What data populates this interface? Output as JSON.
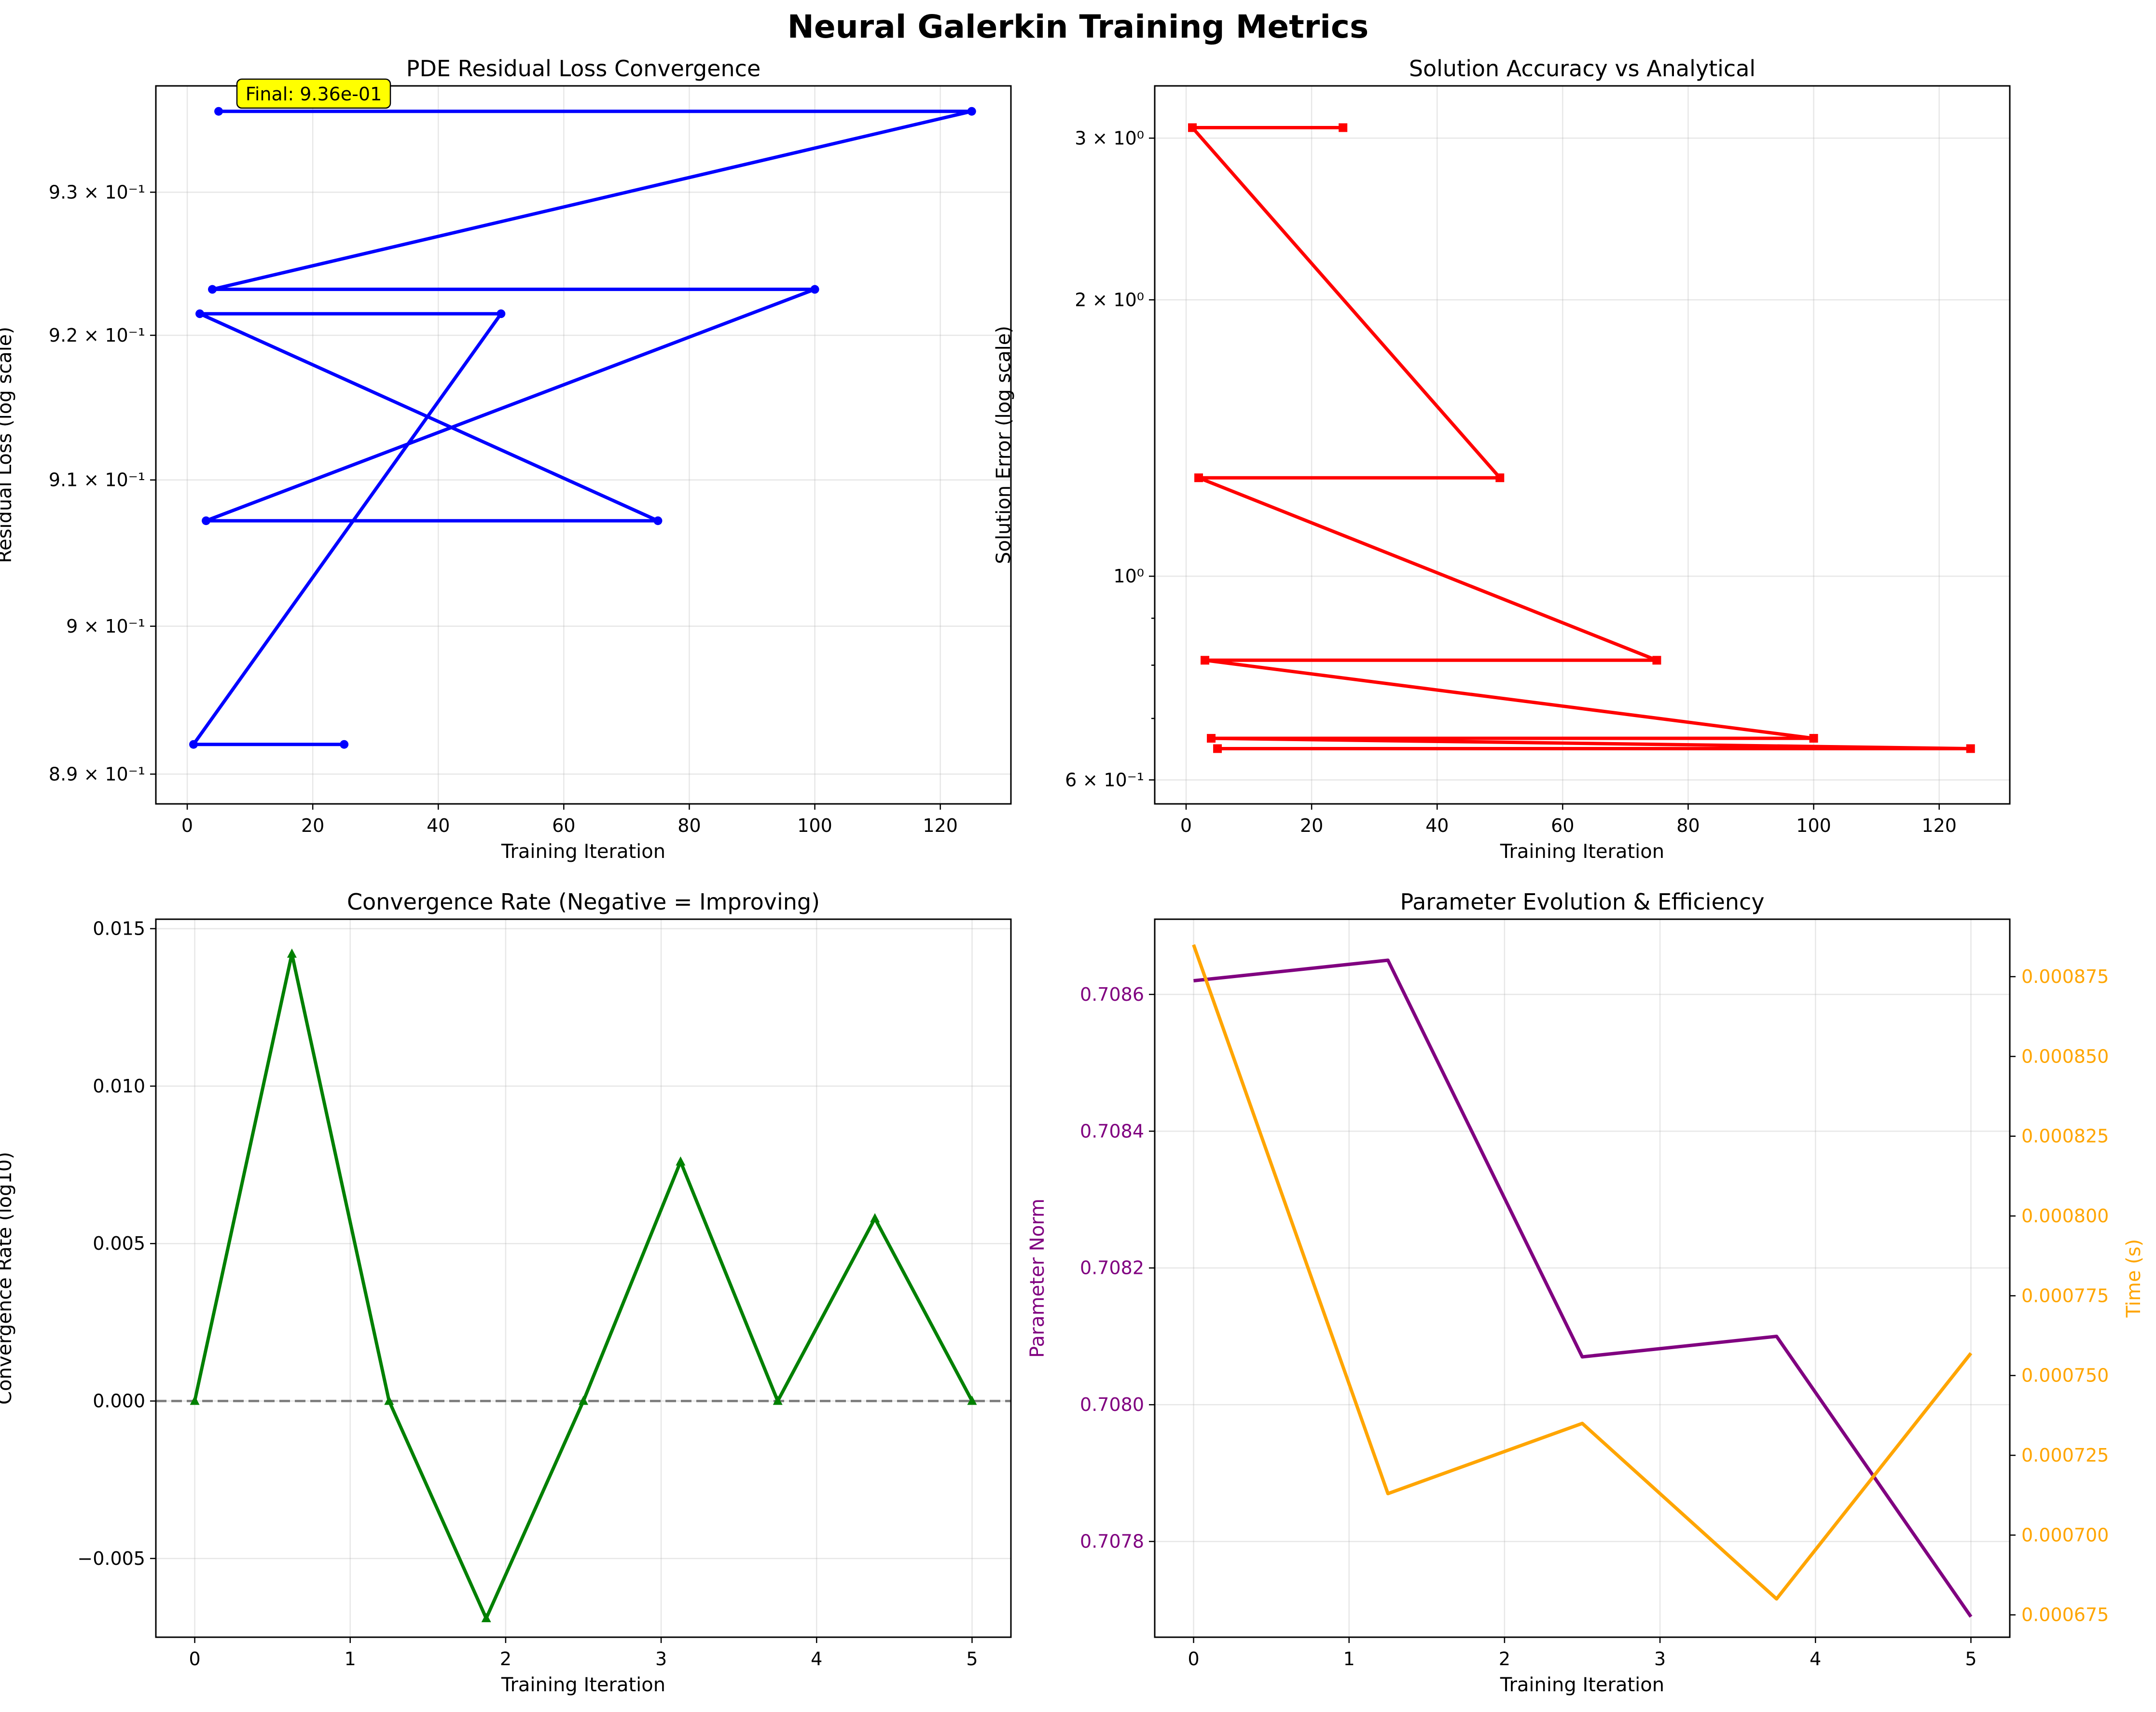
{
  "figure": {
    "title": "Neural Galerkin Training Metrics"
  },
  "chart_data": [
    {
      "id": "residual",
      "type": "line",
      "title": "PDE Residual Loss Convergence",
      "xlabel": "Training Iteration",
      "ylabel": "Residual Loss (log scale)",
      "xlim": [
        -5,
        131.25
      ],
      "ylim": [
        0.888,
        0.9375
      ],
      "yscale": "log",
      "grid": true,
      "x_ticks": [
        0,
        20,
        40,
        60,
        80,
        100,
        120
      ],
      "x_tick_labels": [
        "0",
        "20",
        "40",
        "60",
        "80",
        "100",
        "120"
      ],
      "y_ticks": [
        0.89,
        0.9,
        0.91,
        0.92,
        0.93
      ],
      "y_tick_labels": [
        "8.9 × 10⁻¹",
        "9 × 10⁻¹",
        "9.1 × 10⁻¹",
        "9.2 × 10⁻¹",
        "9.3 × 10⁻¹"
      ],
      "series": [
        {
          "color": "#0000ff",
          "marker": "circle",
          "x": [
            25,
            1,
            50,
            2,
            75,
            3,
            100,
            4,
            125,
            5
          ],
          "y": [
            0.892,
            0.892,
            0.9215,
            0.9215,
            0.9072,
            0.9072,
            0.9232,
            0.9232,
            0.9357,
            0.9357
          ]
        }
      ],
      "annotation": {
        "text": "Final: 9.36e-01",
        "background": "#ffff00"
      }
    },
    {
      "id": "accuracy",
      "type": "line",
      "title": "Solution Accuracy vs Analytical",
      "xlabel": "Training Iteration",
      "ylabel": "Solution Error (log scale)",
      "xlim": [
        -5,
        131.25
      ],
      "ylim": [
        0.565,
        3.42
      ],
      "yscale": "log",
      "grid": true,
      "x_ticks": [
        0,
        20,
        40,
        60,
        80,
        100,
        120
      ],
      "x_tick_labels": [
        "0",
        "20",
        "40",
        "60",
        "80",
        "100",
        "120"
      ],
      "y_ticks": [
        0.6,
        1,
        2,
        3
      ],
      "y_tick_labels": [
        "6 × 10⁻¹",
        "10⁰",
        "2 × 10⁰",
        "3 × 10⁰"
      ],
      "y_minor_ticks": [
        0.7,
        0.8,
        0.9
      ],
      "series": [
        {
          "color": "#ff0000",
          "marker": "square",
          "x": [
            25,
            1,
            50,
            2,
            75,
            3,
            100,
            4,
            125,
            5
          ],
          "y": [
            3.08,
            3.08,
            1.28,
            1.28,
            0.81,
            0.81,
            0.666,
            0.666,
            0.649,
            0.649
          ]
        }
      ]
    },
    {
      "id": "rate",
      "type": "line",
      "title": "Convergence Rate (Negative = Improving)",
      "xlabel": "Training Iteration",
      "ylabel": "Convergence Rate (log10)",
      "xlim": [
        -0.25,
        5.25
      ],
      "ylim": [
        -0.0075,
        0.0153
      ],
      "grid": true,
      "x_ticks": [
        0,
        1,
        2,
        3,
        4,
        5
      ],
      "x_tick_labels": [
        "0",
        "1",
        "2",
        "3",
        "4",
        "5"
      ],
      "y_ticks": [
        -0.005,
        0,
        0.005,
        0.01,
        0.015
      ],
      "y_tick_labels": [
        "−0.005",
        "0.000",
        "0.005",
        "0.010",
        "0.015"
      ],
      "reference_line": {
        "y": 0,
        "color": "#808080",
        "style": "dashed"
      },
      "series": [
        {
          "color": "#008000",
          "marker": "triangle",
          "x": [
            0,
            0.625,
            1.25,
            1.875,
            2.5,
            3.125,
            3.75,
            4.375,
            5
          ],
          "y": [
            0,
            0.0142,
            0,
            -0.0069,
            0,
            0.0076,
            0,
            0.0058,
            0
          ]
        }
      ]
    },
    {
      "id": "params",
      "type": "line",
      "title": "Parameter Evolution & Efficiency",
      "xlabel": "Training Iteration",
      "ylabel": "Parameter Norm",
      "ylabel_right": "Time (s)",
      "xlim": [
        -0.25,
        5.25
      ],
      "ylim": [
        0.70766,
        0.70871
      ],
      "ylim_right": [
        0.000668,
        0.000893
      ],
      "grid": true,
      "x_ticks": [
        0,
        1,
        2,
        3,
        4,
        5
      ],
      "x_tick_labels": [
        "0",
        "1",
        "2",
        "3",
        "4",
        "5"
      ],
      "y_ticks": [
        0.7078,
        0.708,
        0.7082,
        0.7084,
        0.7086
      ],
      "y_tick_labels": [
        "0.7078",
        "0.7080",
        "0.7082",
        "0.7084",
        "0.7086"
      ],
      "y_right_ticks": [
        0.000675,
        0.0007,
        0.000725,
        0.00075,
        0.000775,
        0.0008,
        0.000825,
        0.00085,
        0.000875
      ],
      "y_right_tick_labels": [
        "0.000675",
        "0.000700",
        "0.000725",
        "0.000750",
        "0.000775",
        "0.000800",
        "0.000825",
        "0.000850",
        "0.000875"
      ],
      "left_color": "#800080",
      "right_color": "#ffa500",
      "series": [
        {
          "color": "#800080",
          "axis": "left",
          "x": [
            0,
            1.25,
            2.5,
            3.75,
            5
          ],
          "y": [
            0.70862,
            0.70865,
            0.70807,
            0.7081,
            0.70769
          ]
        },
        {
          "color": "#ffa500",
          "axis": "right",
          "x": [
            0,
            1.25,
            2.5,
            3.75,
            5
          ],
          "y": [
            0.000885,
            0.000713,
            0.000735,
            0.00068,
            0.000757
          ]
        }
      ]
    }
  ]
}
